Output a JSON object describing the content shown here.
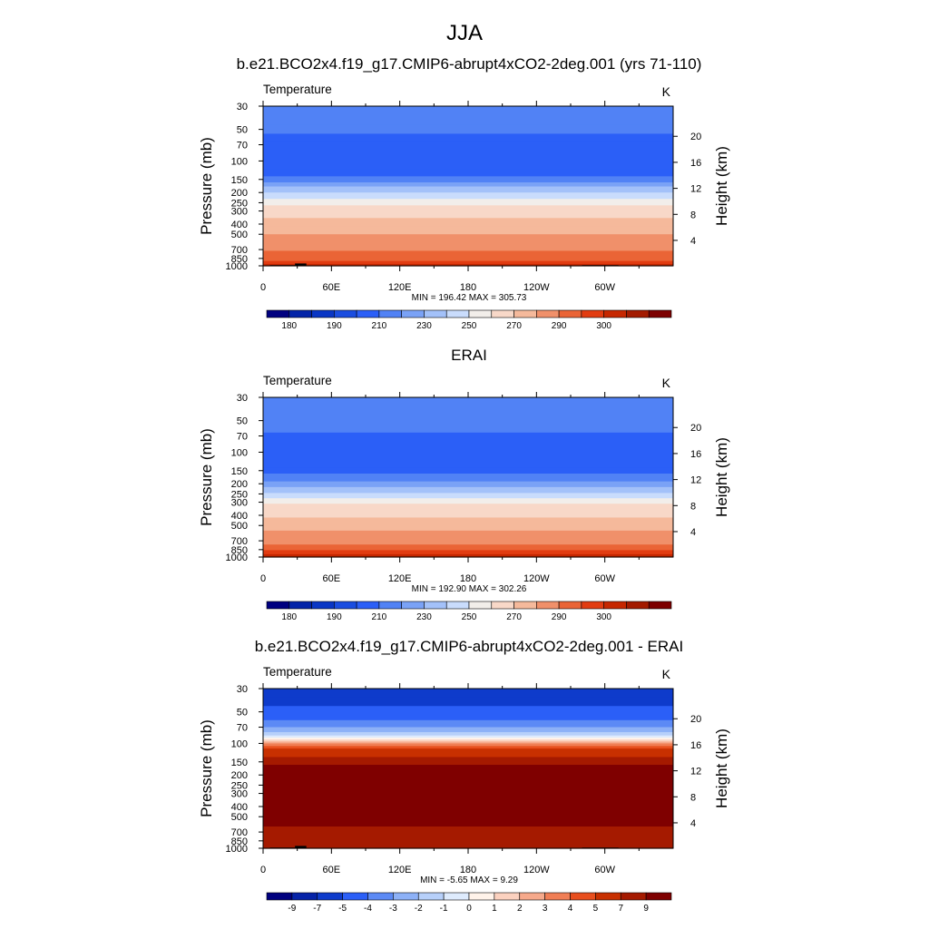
{
  "page": {
    "title": "JJA"
  },
  "colors": {
    "absolute_palette": [
      "#000080",
      "#0324a8",
      "#0936c5",
      "#1a4de0",
      "#2b5ff7",
      "#5182f5",
      "#7aa2f6",
      "#a3c1f9",
      "#c9dcfc",
      "#f2eeea",
      "#f8d8c8",
      "#f5b99b",
      "#f0906a",
      "#ea6436",
      "#e23c11",
      "#c62700",
      "#a31b00",
      "#7d0000"
    ],
    "difference_palette": [
      "#00007f",
      "#0623a8",
      "#0e3bcb",
      "#2b5ff7",
      "#5c8af5",
      "#8db1f7",
      "#b7d0fa",
      "#deebfd",
      "#fff3ea",
      "#fbd1bf",
      "#f6a98b",
      "#f07e55",
      "#e84f1e",
      "#c83000",
      "#a51a00",
      "#7f0000"
    ],
    "land_mask": "#000000"
  },
  "chart_data": [
    {
      "type": "heatmap",
      "title": "b.e21.BCO2x4.f19_g17.CMIP6-abrupt4xCO2-2deg.001 (yrs 71-110)",
      "left_label": "Temperature",
      "right_label": "K",
      "ylabel": "Pressure (mb)",
      "ylabel_right": "Height (km)",
      "x_ticks": [
        "0",
        "60E",
        "120E",
        "180",
        "120W",
        "60W"
      ],
      "x_tick_lon": [
        0,
        60,
        120,
        180,
        240,
        300
      ],
      "x_range": [
        0,
        360
      ],
      "y_ticks": [
        "30",
        "50",
        "70",
        "100",
        "150",
        "200",
        "250",
        "300",
        "400",
        "500",
        "700",
        "850",
        "1000"
      ],
      "y_tick_values": [
        30,
        50,
        70,
        100,
        150,
        200,
        250,
        300,
        400,
        500,
        700,
        850,
        1000
      ],
      "y_range": [
        30,
        1000
      ],
      "y_scale": "log",
      "height_ticks": [
        "20",
        "16",
        "12",
        "8",
        "4"
      ],
      "height_values": [
        20,
        16,
        12,
        8,
        4
      ],
      "min_max": "MIN = 196.42  MAX = 305.73",
      "colorbar_labels": [
        "180",
        "190",
        "210",
        "230",
        "250",
        "270",
        "290",
        "300"
      ],
      "profile_levels": [
        30,
        40,
        45,
        55,
        65,
        75,
        120,
        140,
        160,
        175,
        200,
        230,
        265,
        300,
        350,
        420,
        500,
        600,
        720,
        820,
        900,
        960,
        1000
      ],
      "profile_color_index": [
        5,
        5,
        5,
        4,
        4,
        4,
        4,
        5,
        6,
        7,
        8,
        9,
        10,
        10,
        11,
        11,
        12,
        12,
        13,
        13,
        14,
        15,
        16
      ],
      "land_mask": [
        {
          "lon0": 6,
          "lon1": 28,
          "p0": 985,
          "p1": 1000
        },
        {
          "lon0": 28,
          "lon1": 38,
          "p0": 950,
          "p1": 1000
        },
        {
          "lon0": 98,
          "lon1": 104,
          "p0": 990,
          "p1": 1000
        },
        {
          "lon0": 115,
          "lon1": 120,
          "p0": 990,
          "p1": 1000
        },
        {
          "lon0": 280,
          "lon1": 312,
          "p0": 985,
          "p1": 1000
        }
      ]
    },
    {
      "type": "heatmap",
      "title": "ERAI",
      "left_label": "Temperature",
      "right_label": "K",
      "ylabel": "Pressure (mb)",
      "ylabel_right": "Height (km)",
      "x_ticks": [
        "0",
        "60E",
        "120E",
        "180",
        "120W",
        "60W"
      ],
      "x_tick_lon": [
        0,
        60,
        120,
        180,
        240,
        300
      ],
      "x_range": [
        0,
        360
      ],
      "y_ticks": [
        "30",
        "50",
        "70",
        "100",
        "150",
        "200",
        "250",
        "300",
        "400",
        "500",
        "700",
        "850",
        "1000"
      ],
      "y_tick_values": [
        30,
        50,
        70,
        100,
        150,
        200,
        250,
        300,
        400,
        500,
        700,
        850,
        1000
      ],
      "y_range": [
        30,
        1000
      ],
      "y_scale": "log",
      "height_ticks": [
        "20",
        "16",
        "12",
        "8",
        "4"
      ],
      "height_values": [
        20,
        16,
        12,
        8,
        4
      ],
      "min_max": "MIN = 192.90  MAX = 302.26",
      "colorbar_labels": [
        "180",
        "190",
        "210",
        "230",
        "250",
        "270",
        "290",
        "300"
      ],
      "profile_levels": [
        30,
        45,
        55,
        65,
        75,
        140,
        160,
        190,
        215,
        245,
        275,
        310,
        360,
        420,
        490,
        560,
        650,
        760,
        860,
        940,
        1000
      ],
      "profile_color_index": [
        5,
        5,
        5,
        4,
        4,
        4,
        5,
        6,
        7,
        8,
        9,
        10,
        10,
        11,
        11,
        12,
        12,
        13,
        14,
        15,
        15
      ],
      "land_mask": []
    },
    {
      "type": "heatmap",
      "title": "b.e21.BCO2x4.f19_g17.CMIP6-abrupt4xCO2-2deg.001 - ERAI",
      "left_label": "Temperature",
      "right_label": "K",
      "ylabel": "Pressure (mb)",
      "ylabel_right": "Height (km)",
      "x_ticks": [
        "0",
        "60E",
        "120E",
        "180",
        "120W",
        "60W"
      ],
      "x_tick_lon": [
        0,
        60,
        120,
        180,
        240,
        300
      ],
      "x_range": [
        0,
        360
      ],
      "y_ticks": [
        "30",
        "50",
        "70",
        "100",
        "150",
        "200",
        "250",
        "300",
        "400",
        "500",
        "700",
        "850",
        "1000"
      ],
      "y_tick_values": [
        30,
        50,
        70,
        100,
        150,
        200,
        250,
        300,
        400,
        500,
        700,
        850,
        1000
      ],
      "y_range": [
        30,
        1000
      ],
      "y_scale": "log",
      "height_ticks": [
        "20",
        "16",
        "12",
        "8",
        "4"
      ],
      "height_values": [
        20,
        16,
        12,
        8,
        4
      ],
      "min_max": "MIN =  -5.65  MAX =   9.29",
      "colorbar_labels": [
        "-9",
        "-7",
        "-5",
        "-4",
        "-3",
        "-2",
        "-1",
        "0",
        "1",
        "2",
        "3",
        "4",
        "5",
        "7",
        "9"
      ],
      "profile_levels": [
        30,
        36,
        44,
        60,
        70,
        78,
        84,
        88,
        92,
        96,
        100,
        106,
        112,
        120,
        135,
        160,
        450,
        620,
        1000
      ],
      "profile_color_index": [
        2,
        2,
        3,
        4,
        5,
        6,
        7,
        8,
        9,
        10,
        11,
        12,
        13,
        13,
        14,
        15,
        15,
        14,
        14
      ],
      "land_mask": [
        {
          "lon0": 6,
          "lon1": 28,
          "p0": 985,
          "p1": 1000
        },
        {
          "lon0": 28,
          "lon1": 38,
          "p0": 950,
          "p1": 1000
        },
        {
          "lon0": 98,
          "lon1": 104,
          "p0": 990,
          "p1": 1000
        },
        {
          "lon0": 115,
          "lon1": 120,
          "p0": 990,
          "p1": 1000
        },
        {
          "lon0": 280,
          "lon1": 312,
          "p0": 985,
          "p1": 1000
        }
      ]
    }
  ]
}
